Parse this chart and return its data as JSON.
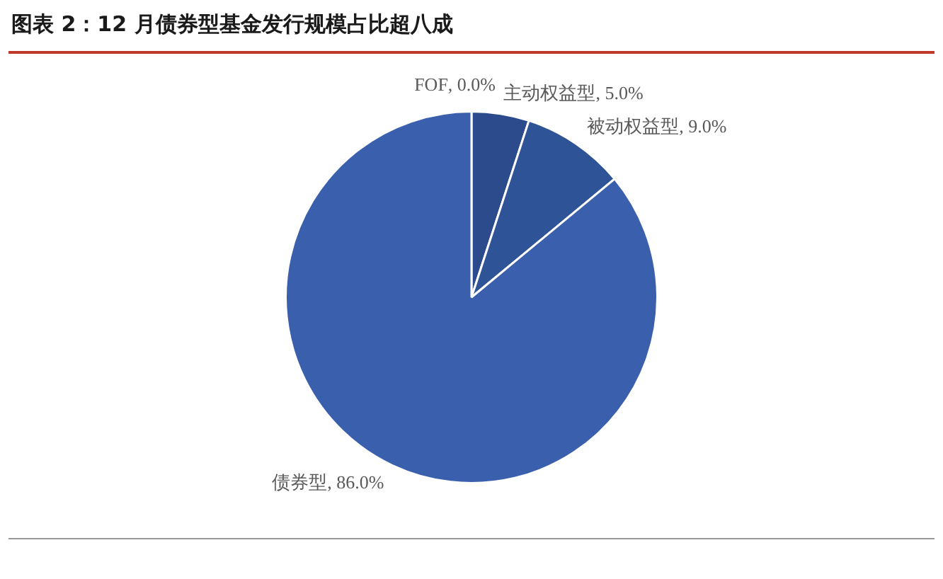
{
  "chart_data": {
    "type": "pie",
    "title": "图表 2：12 月债券型基金发行规模占比超八成",
    "categories": [
      "FOF",
      "主动权益型",
      "被动权益型",
      "债券型"
    ],
    "values": [
      0.0,
      5.0,
      9.0,
      86.0
    ],
    "value_labels": [
      ", 0.0%",
      ", 5.0%",
      ", 9.0%",
      ", 86.0%"
    ],
    "colors": [
      "#22407a",
      "#2b4b8c",
      "#2e5397",
      "#3a60ad"
    ],
    "legend": false
  }
}
